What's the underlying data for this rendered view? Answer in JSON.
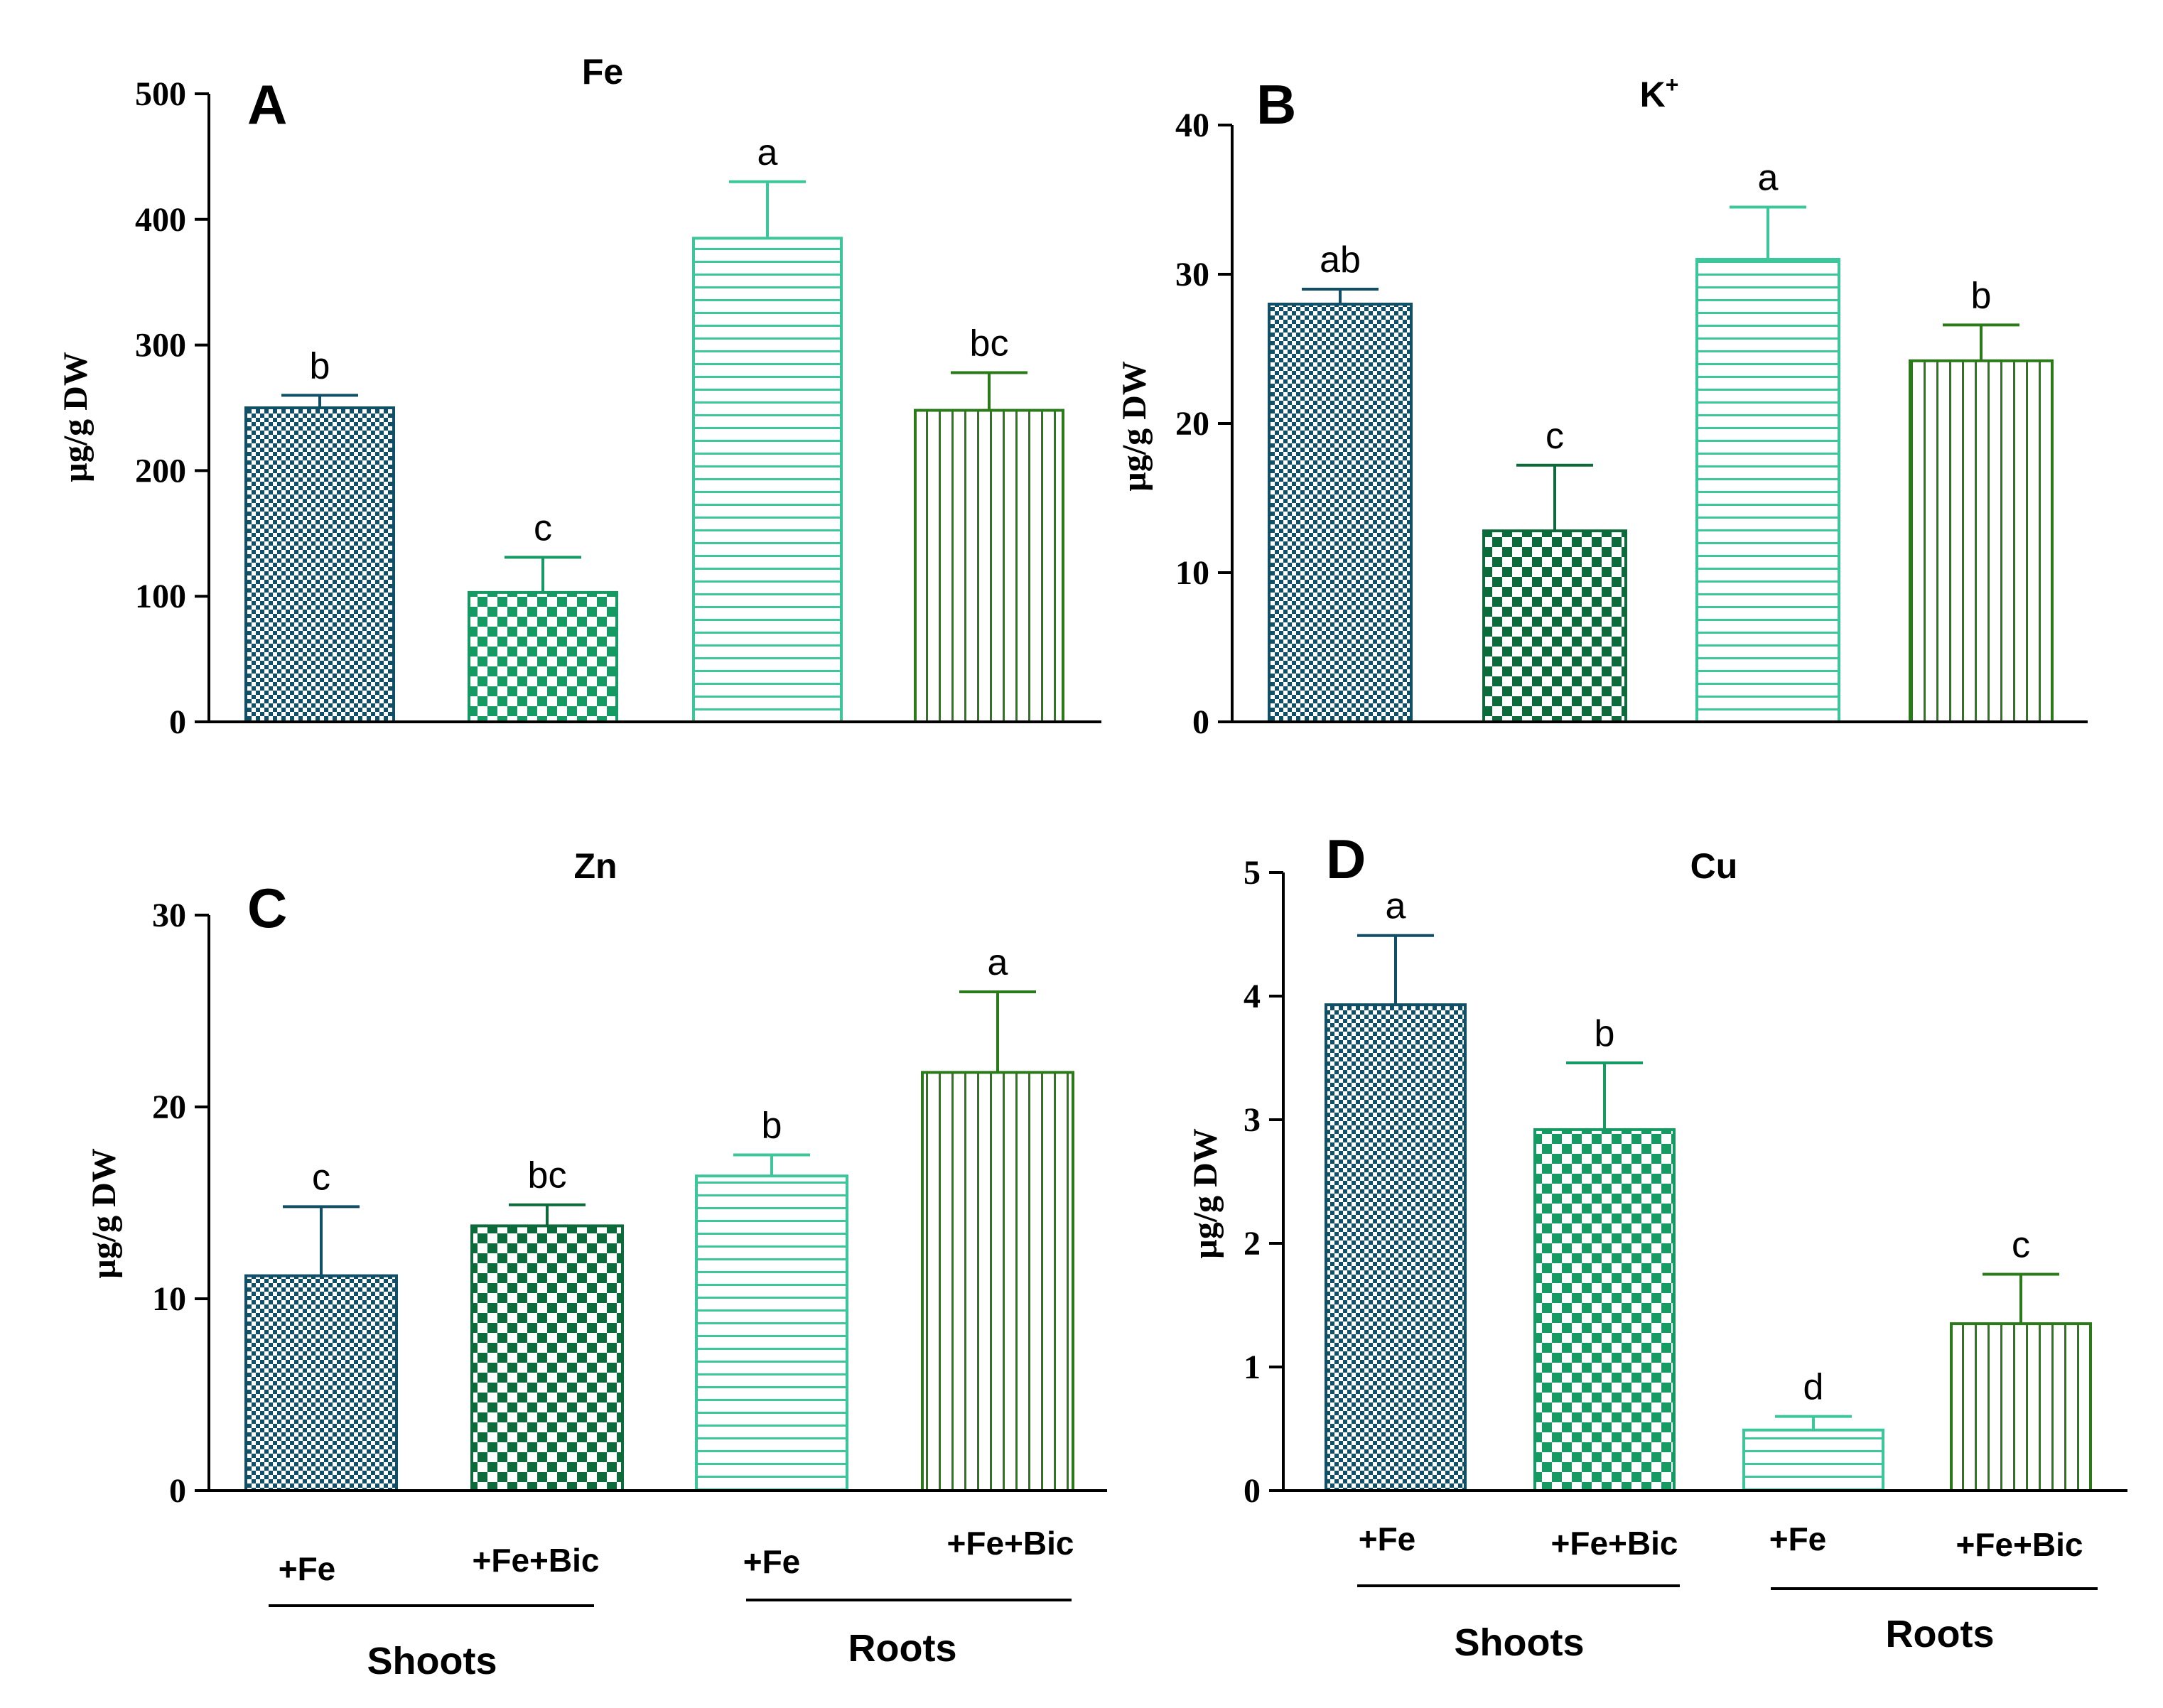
{
  "figure": {
    "shared_labels": {
      "shoots": "Shoots",
      "roots": "Roots",
      "fe": "+Fe",
      "fe_bic": "+Fe+Bic"
    }
  },
  "colors": {
    "navy_teal": "#114f66",
    "dark_green": "#0d6a3a",
    "mid_green": "#159a63",
    "mint": "#3cc69a",
    "forest": "#2b7a19"
  },
  "chart_data": [
    {
      "panel": "A",
      "type": "bar",
      "title": "Fe",
      "ylabel": "µg/g DW",
      "xlabel": "",
      "ylim": [
        0,
        500
      ],
      "yticks": [
        "0",
        "100",
        "200",
        "300",
        "400",
        "500"
      ],
      "categories": [
        "+Fe",
        "+Fe+Bic",
        "+Fe",
        "+Fe+Bic"
      ],
      "groups": [
        "Shoots",
        "Shoots",
        "Roots",
        "Roots"
      ],
      "values": [
        250,
        103,
        385,
        248
      ],
      "errors": [
        10,
        28,
        45,
        30
      ],
      "letters": [
        "b",
        "c",
        "a",
        "bc"
      ],
      "patterns": [
        "fine-check",
        "coarse-check",
        "hstripe",
        "vstripe"
      ],
      "colors": [
        "#114f66",
        "#159a63",
        "#3cc69a",
        "#2b7a19"
      ]
    },
    {
      "panel": "B",
      "type": "bar",
      "title": "K",
      "title_sup": "+",
      "ylabel": "µg/g DW",
      "xlabel": "",
      "ylim": [
        0,
        40
      ],
      "yticks": [
        "0",
        "10",
        "20",
        "30",
        "40"
      ],
      "categories": [
        "+Fe",
        "+Fe+Bic",
        "+Fe",
        "+Fe+Bic"
      ],
      "groups": [
        "Shoots",
        "Shoots",
        "Roots",
        "Roots"
      ],
      "values": [
        28,
        12.8,
        31,
        24.2
      ],
      "errors": [
        1,
        4.4,
        3.5,
        2.4
      ],
      "letters": [
        "ab",
        "c",
        "a",
        "b"
      ],
      "patterns": [
        "fine-check",
        "coarse-check",
        "hstripe",
        "vstripe"
      ],
      "colors": [
        "#114f66",
        "#0d6a3a",
        "#3cc69a",
        "#2b7a19"
      ]
    },
    {
      "panel": "C",
      "type": "bar",
      "title": "Zn",
      "ylabel": "µg/g DW",
      "xlabel": "",
      "ylim": [
        0,
        30
      ],
      "yticks": [
        "0",
        "10",
        "20",
        "30"
      ],
      "categories": [
        "+Fe",
        "+Fe+Bic",
        "+Fe",
        "+Fe+Bic"
      ],
      "groups": [
        "Shoots",
        "Shoots",
        "Roots",
        "Roots"
      ],
      "values": [
        11.2,
        13.8,
        16.4,
        21.8
      ],
      "errors": [
        3.6,
        1.1,
        1.1,
        4.2
      ],
      "letters": [
        "c",
        "bc",
        "b",
        "a"
      ],
      "patterns": [
        "fine-check",
        "coarse-check",
        "hstripe",
        "vstripe"
      ],
      "colors": [
        "#114f66",
        "#0d6a3a",
        "#3cc69a",
        "#2b7a19"
      ]
    },
    {
      "panel": "D",
      "type": "bar",
      "title": "Cu",
      "ylabel": "µg/g DW",
      "xlabel": "",
      "ylim": [
        0,
        5
      ],
      "yticks": [
        "0",
        "1",
        "2",
        "3",
        "4",
        "5"
      ],
      "categories": [
        "+Fe",
        "+Fe+Bic",
        "+Fe",
        "+Fe+Bic"
      ],
      "groups": [
        "Shoots",
        "Shoots",
        "Roots",
        "Roots"
      ],
      "values": [
        3.93,
        2.92,
        0.49,
        1.35
      ],
      "errors": [
        0.56,
        0.54,
        0.11,
        0.4
      ],
      "letters": [
        "a",
        "b",
        "d",
        "c"
      ],
      "patterns": [
        "fine-check",
        "coarse-check",
        "hstripe",
        "vstripe"
      ],
      "colors": [
        "#114f66",
        "#159a63",
        "#3cc69a",
        "#2b7a19"
      ]
    }
  ]
}
